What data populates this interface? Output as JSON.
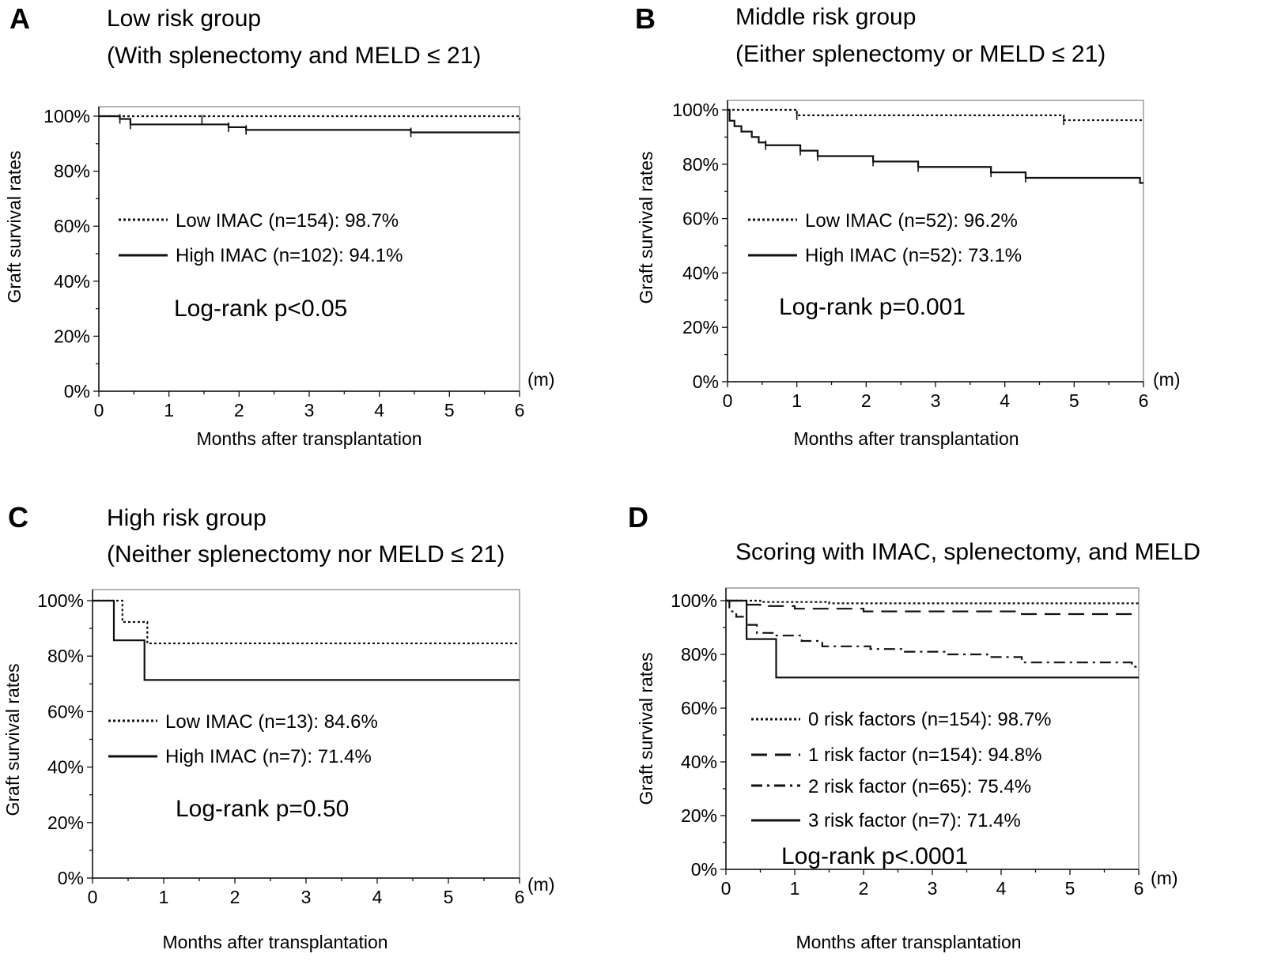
{
  "chart_data": [
    {
      "type": "line",
      "panel_label": "A",
      "title": "Low risk group",
      "subtitle": "(With splenectomy and MELD ≤ 21)",
      "xlabel": "Months after transplantation",
      "ylabel": "Graft survival rates",
      "x_unit": "(m)",
      "xlim": [
        0,
        6
      ],
      "ylim": [
        0,
        100
      ],
      "x_ticks": [
        "0",
        "1",
        "2",
        "3",
        "4",
        "5",
        "6"
      ],
      "y_ticks": [
        "0%",
        "20%",
        "40%",
        "60%",
        "80%",
        "100%"
      ],
      "log_rank": "Log-rank p<0.05",
      "series": [
        {
          "name": "Low IMAC",
          "legend": "Low IMAC (n=154): 98.7%",
          "style": "dotted",
          "steps": [
            [
              0,
              100
            ],
            [
              6,
              98.7
            ]
          ],
          "censor": [
            [
              1.47,
              98.7
            ]
          ]
        },
        {
          "name": "High IMAC",
          "legend": "High IMAC  (n=102): 94.1%",
          "style": "solid",
          "steps": [
            [
              0,
              100
            ],
            [
              0.3,
              99
            ],
            [
              0.45,
              97
            ],
            [
              1.85,
              96
            ],
            [
              2.1,
              95
            ],
            [
              4.45,
              94.1
            ],
            [
              6,
              94.1
            ]
          ],
          "censor": [
            [
              0.3,
              99
            ],
            [
              0.45,
              97
            ],
            [
              1.85,
              96
            ],
            [
              2.1,
              95
            ],
            [
              4.45,
              94.1
            ]
          ]
        }
      ]
    },
    {
      "type": "line",
      "panel_label": "B",
      "title": "Middle risk group",
      "subtitle": "(Either splenectomy or MELD ≤ 21)",
      "xlabel": "Months after transplantation",
      "ylabel": "Graft survival rates",
      "x_unit": "(m)",
      "xlim": [
        0,
        6
      ],
      "ylim": [
        0,
        100
      ],
      "x_ticks": [
        "0",
        "1",
        "2",
        "3",
        "4",
        "5",
        "6"
      ],
      "y_ticks": [
        "0%",
        "20%",
        "40%",
        "60%",
        "80%",
        "100%"
      ],
      "log_rank": "Log-rank p=0.001",
      "series": [
        {
          "name": "Low IMAC",
          "legend": "Low  IMAC (n=52): 96.2%",
          "style": "dotted",
          "steps": [
            [
              0,
              100
            ],
            [
              1.0,
              98
            ],
            [
              4.85,
              96.2
            ],
            [
              6,
              96.2
            ]
          ],
          "censor": [
            [
              1.0,
              98
            ],
            [
              4.85,
              96.2
            ]
          ]
        },
        {
          "name": "High IMAC",
          "legend": "High IMAC  (n=52): 73.1%",
          "style": "solid",
          "steps": [
            [
              0,
              100
            ],
            [
              0.03,
              96
            ],
            [
              0.1,
              94
            ],
            [
              0.2,
              92
            ],
            [
              0.35,
              90
            ],
            [
              0.45,
              88
            ],
            [
              0.55,
              87
            ],
            [
              1.05,
              85
            ],
            [
              1.3,
              83
            ],
            [
              2.1,
              81
            ],
            [
              2.75,
              79
            ],
            [
              3.8,
              77
            ],
            [
              4.3,
              75
            ],
            [
              5.95,
              73.1
            ],
            [
              6,
              73.1
            ]
          ],
          "censor": [
            [
              0.55,
              87
            ],
            [
              1.05,
              85
            ],
            [
              1.3,
              83
            ],
            [
              2.1,
              81
            ],
            [
              2.75,
              79
            ],
            [
              3.8,
              77
            ],
            [
              4.3,
              75
            ]
          ]
        }
      ]
    },
    {
      "type": "line",
      "panel_label": "C",
      "title": "High risk group",
      "subtitle": "(Neither splenectomy nor MELD ≤ 21)",
      "xlabel": "Months after transplantation",
      "ylabel": "Graft survival rates",
      "x_unit": "(m)",
      "xlim": [
        0,
        6
      ],
      "ylim": [
        0,
        100
      ],
      "x_ticks": [
        "0",
        "1",
        "2",
        "3",
        "4",
        "5",
        "6"
      ],
      "y_ticks": [
        "0%",
        "20%",
        "40%",
        "60%",
        "80%",
        "100%"
      ],
      "log_rank": "Log-rank p=0.50",
      "series": [
        {
          "name": "Low IMAC",
          "legend": "Low IMAC (n=13): 84.6%",
          "style": "dotted",
          "steps": [
            [
              0,
              100
            ],
            [
              0.42,
              92.3
            ],
            [
              0.77,
              84.6
            ],
            [
              6,
              84.6
            ]
          ],
          "censor": []
        },
        {
          "name": "High IMAC",
          "legend": "High IMAC (n=7): 71.4%",
          "style": "solid",
          "steps": [
            [
              0,
              100
            ],
            [
              0.3,
              85.7
            ],
            [
              0.73,
              71.4
            ],
            [
              6,
              71.4
            ]
          ],
          "censor": []
        }
      ]
    },
    {
      "type": "line",
      "panel_label": "D",
      "title": "Scoring with IMAC, splenectomy, and MELD",
      "subtitle": "",
      "xlabel": "Months after transplantation",
      "ylabel": "Graft survival rates",
      "x_unit": "(m)",
      "xlim": [
        0,
        6
      ],
      "ylim": [
        0,
        100
      ],
      "x_ticks": [
        "0",
        "1",
        "2",
        "3",
        "4",
        "5",
        "6"
      ],
      "y_ticks": [
        "0%",
        "20%",
        "40%",
        "60%",
        "80%",
        "100%"
      ],
      "log_rank": "Log-rank p<.0001",
      "series": [
        {
          "name": "0 risk factors",
          "legend": "0 risk factors (n=154): 98.7%",
          "style": "dotted",
          "steps": [
            [
              0,
              100
            ],
            [
              0.5,
              99.5
            ],
            [
              1.5,
              99
            ],
            [
              6,
              98.7
            ]
          ],
          "censor": []
        },
        {
          "name": "1 risk factor",
          "legend": "1 risk factor (n=154): 94.8%",
          "style": "dashed",
          "steps": [
            [
              0,
              100
            ],
            [
              0.3,
              98.5
            ],
            [
              0.5,
              98
            ],
            [
              1.0,
              97
            ],
            [
              2.0,
              96
            ],
            [
              4.3,
              95
            ],
            [
              6,
              94.8
            ]
          ],
          "censor": []
        },
        {
          "name": "2 risk factor",
          "legend": "2 risk factor (n=65): 75.4%",
          "style": "dashdot",
          "steps": [
            [
              0,
              100
            ],
            [
              0.05,
              96
            ],
            [
              0.15,
              94
            ],
            [
              0.3,
              91
            ],
            [
              0.45,
              88
            ],
            [
              0.7,
              87
            ],
            [
              1.1,
              85
            ],
            [
              1.4,
              83
            ],
            [
              2.1,
              82
            ],
            [
              2.6,
              81
            ],
            [
              3.2,
              80
            ],
            [
              3.8,
              79
            ],
            [
              4.3,
              77
            ],
            [
              5.9,
              75.4
            ],
            [
              6,
              75.4
            ]
          ],
          "censor": []
        },
        {
          "name": "3 risk factor",
          "legend": "3 risk factor (n=7): 71.4%",
          "style": "solid",
          "steps": [
            [
              0,
              100
            ],
            [
              0.3,
              85.7
            ],
            [
              0.73,
              71.4
            ],
            [
              6,
              71.4
            ]
          ],
          "censor": []
        }
      ]
    }
  ]
}
